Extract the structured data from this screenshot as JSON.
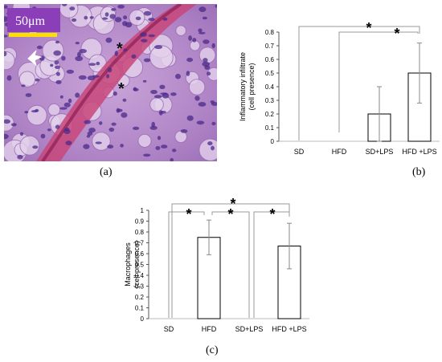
{
  "panel_labels": {
    "a": "(a)",
    "b": "(b)",
    "c": "(c)"
  },
  "micrograph": {
    "scale_bar_label": "50μm",
    "scale_bar_color": "#ffdd00",
    "scale_box_color": "#8a3fb8",
    "markers": [
      "*",
      "*"
    ]
  },
  "chart_data": [
    {
      "type": "bar",
      "ylabel": "Inflammatory infiltrate (cell presence)",
      "ylabel_lines": [
        "Inflammatory infiltrate",
        "(cell presence)"
      ],
      "categories": [
        "SD",
        "HFD",
        "SD+LPS",
        "HFD +LPS"
      ],
      "values": [
        0,
        0,
        0.2,
        0.5
      ],
      "errors": [
        0,
        0,
        0.2,
        0.22
      ],
      "ylim": [
        0,
        0.8
      ],
      "yticks": [
        "0",
        "0.1",
        "0.2",
        "0.3",
        "0.4",
        "0.5",
        "0.6",
        "0.7",
        "0.8"
      ],
      "significance": [
        "*",
        "*"
      ]
    },
    {
      "type": "bar",
      "ylabel": "Macrophages (cell presence)",
      "ylabel_lines": [
        "Macrophages",
        "(cell presence)"
      ],
      "categories": [
        "SD",
        "HFD",
        "SD+LPS",
        "HFD +LPS"
      ],
      "values": [
        0,
        0.75,
        0,
        0.67
      ],
      "errors": [
        0,
        0.16,
        0,
        0.21
      ],
      "ylim": [
        0,
        1
      ],
      "yticks": [
        "0",
        "0.1",
        "0.2",
        "0.3",
        "0.4",
        "0.5",
        "0.6",
        "0.7",
        "0.8",
        "0.9",
        "1"
      ],
      "significance": [
        "*",
        "*",
        "*",
        "*"
      ]
    }
  ]
}
